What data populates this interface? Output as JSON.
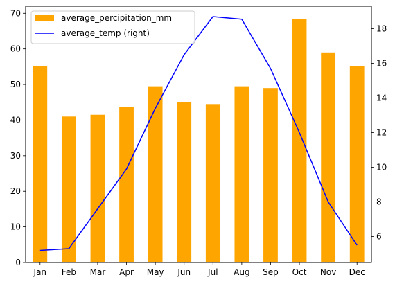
{
  "chart_data": {
    "type": "bar",
    "title": "",
    "xlabel": "",
    "ylabel": "",
    "categories": [
      "Jan",
      "Feb",
      "Mar",
      "Apr",
      "May",
      "Jun",
      "Jul",
      "Aug",
      "Sep",
      "Oct",
      "Nov",
      "Dec"
    ],
    "series": [
      {
        "name": "average_percipitation_mm",
        "type": "bar",
        "axis": "left",
        "color": "#FFA500",
        "values": [
          55.2,
          41.0,
          41.5,
          43.6,
          49.5,
          45.0,
          44.5,
          49.5,
          49.0,
          68.5,
          59.0,
          55.2
        ]
      },
      {
        "name": "average_temp (right)",
        "type": "line",
        "axis": "right",
        "color": "#0000FF",
        "values": [
          5.2,
          5.3,
          7.6,
          9.9,
          13.4,
          16.5,
          18.7,
          18.55,
          15.7,
          12.0,
          8.0,
          5.5
        ]
      }
    ],
    "y_left": {
      "lim": [
        0,
        72.0
      ],
      "ticks": [
        0,
        10,
        20,
        30,
        40,
        50,
        60,
        70
      ]
    },
    "y_right": {
      "lim": [
        4.5,
        19.3
      ],
      "ticks": [
        6,
        8,
        10,
        12,
        14,
        16,
        18
      ]
    },
    "grid": false,
    "legend": "upper-left"
  }
}
